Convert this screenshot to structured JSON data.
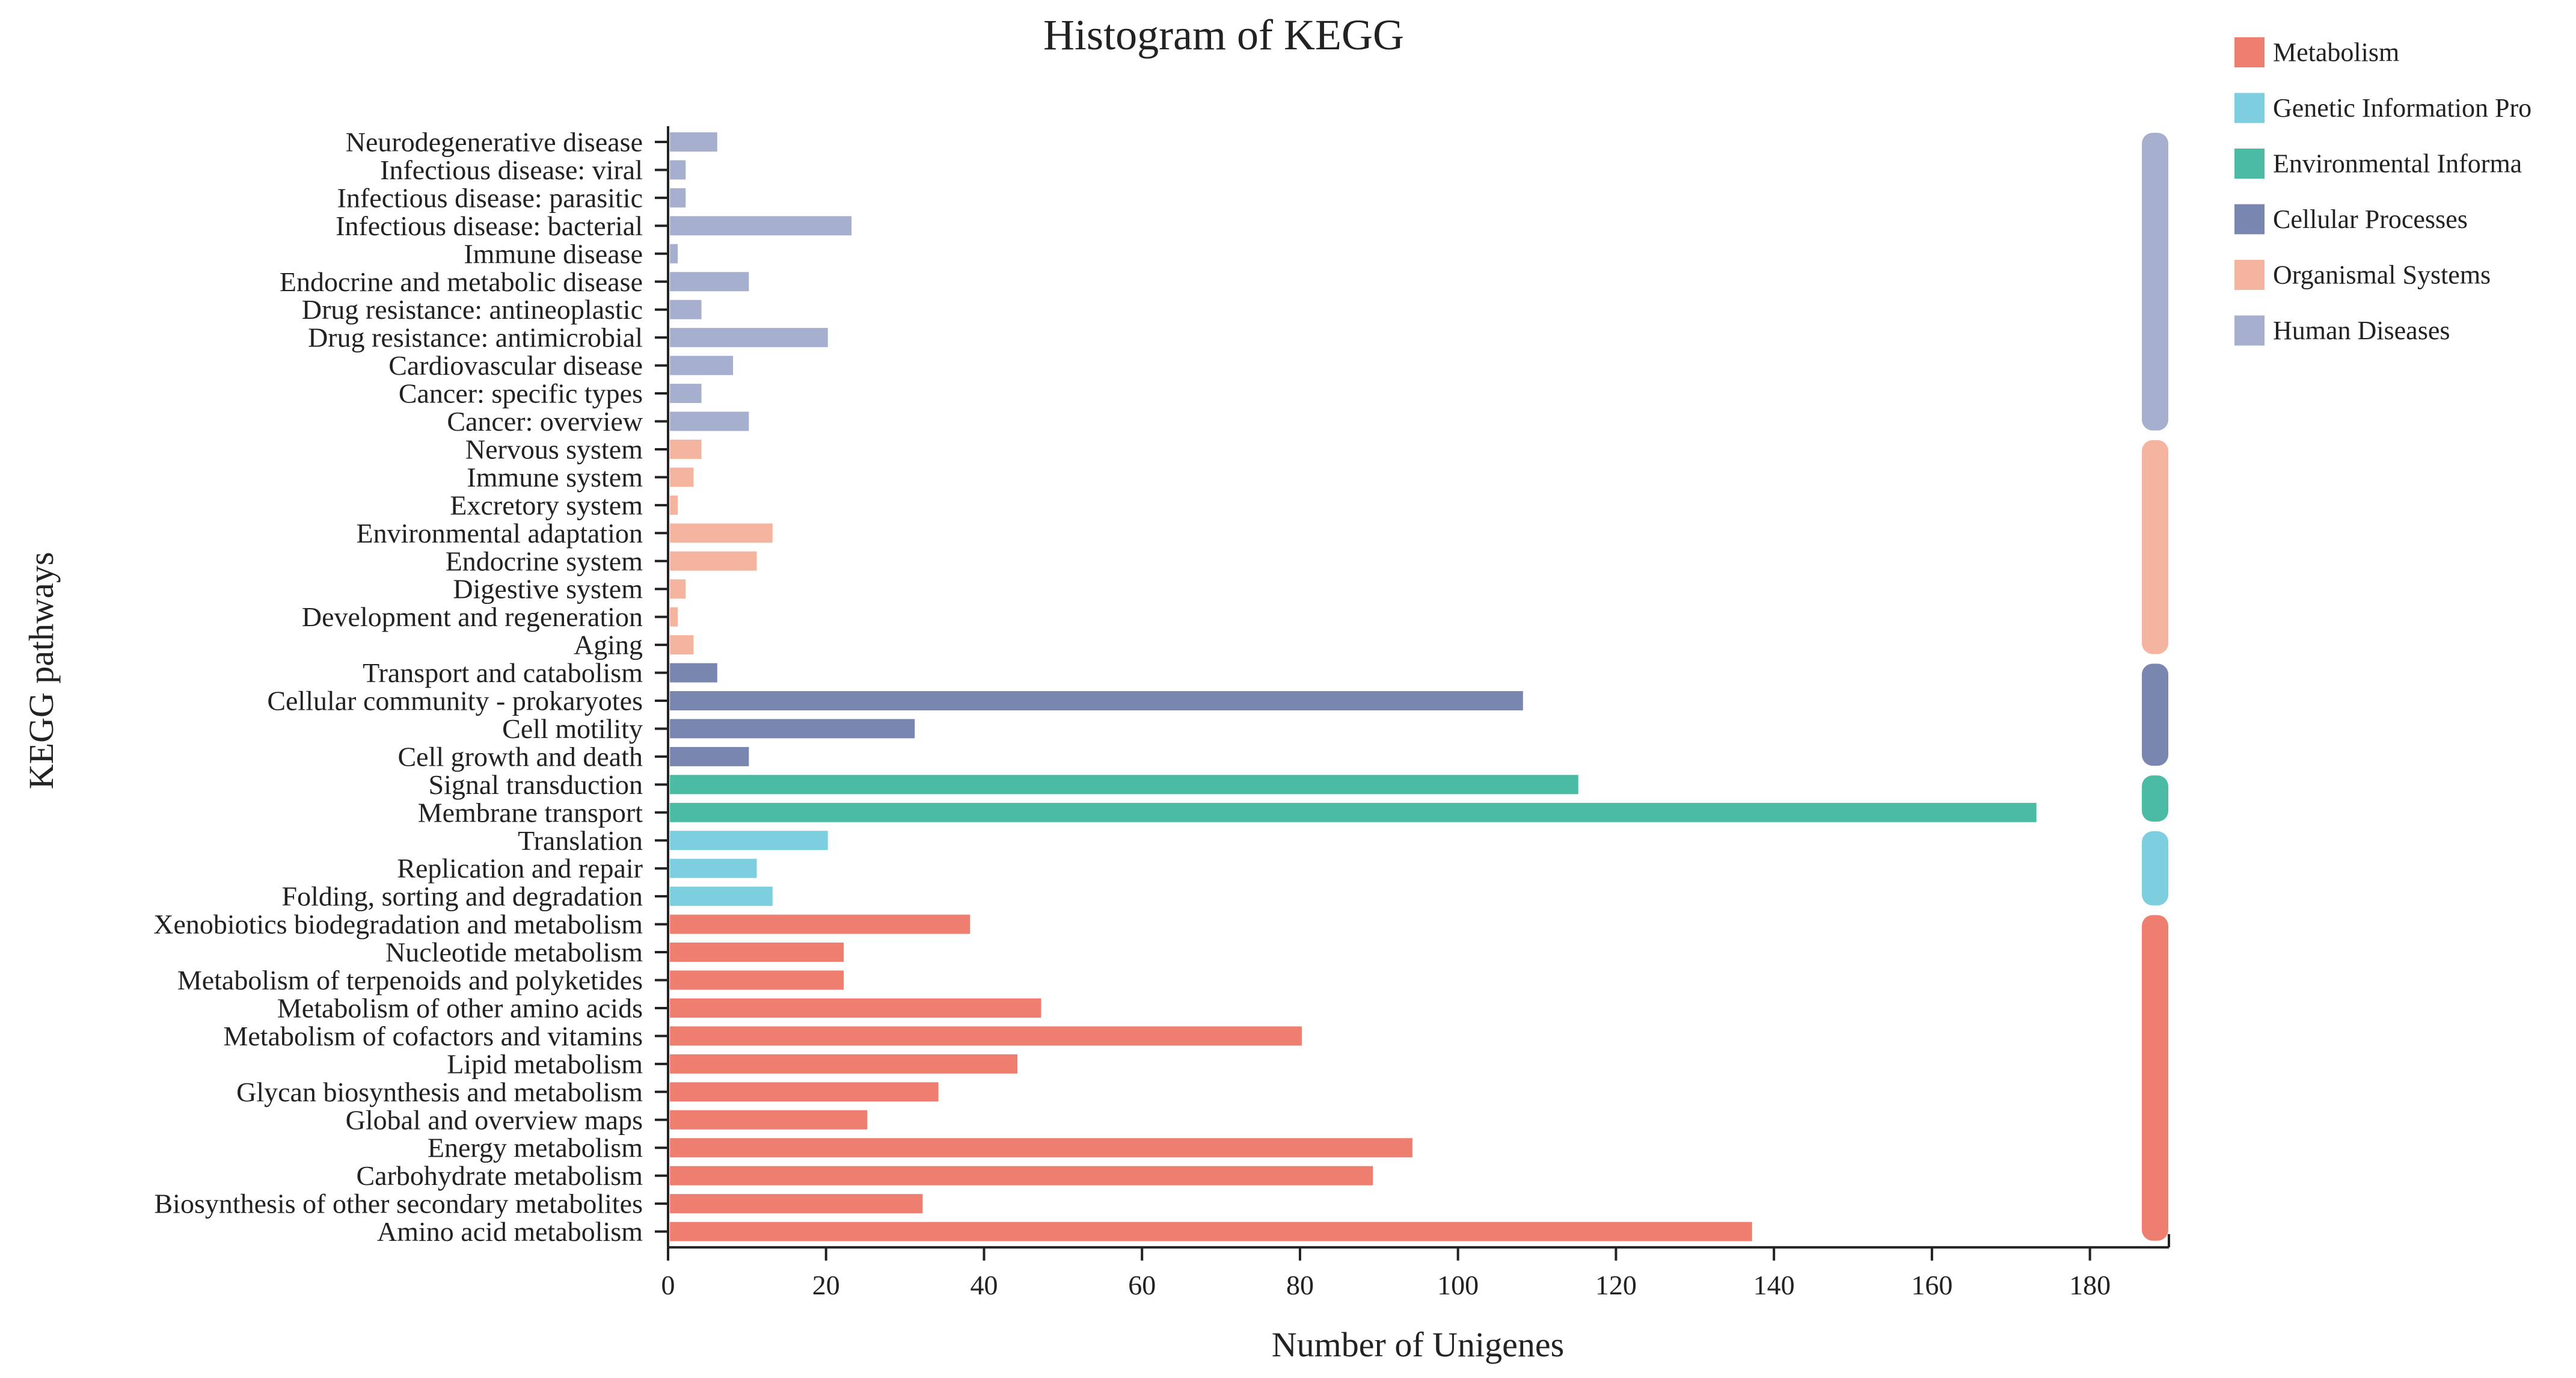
{
  "chart_data": {
    "type": "bar",
    "orientation": "horizontal",
    "title": "Histogram of KEGG",
    "xlabel": "Number of Unigenes",
    "ylabel": "KEGG pathways",
    "xlim": [
      0,
      190
    ],
    "xticks": [
      0,
      20,
      40,
      60,
      80,
      100,
      120,
      140,
      160,
      180
    ],
    "grid": false,
    "legend_position": "top-right",
    "groups": [
      {
        "key": "metabolism",
        "name": "Metabolism",
        "legend_label": "Metabolism",
        "color": "#EE7F70"
      },
      {
        "key": "genetic",
        "name": "Genetic Information Processing",
        "legend_label": "Genetic Information Pro",
        "color": "#7DCFE0"
      },
      {
        "key": "environmental",
        "name": "Environmental Information Processing",
        "legend_label": "Environmental Informa",
        "color": "#4BBBA4"
      },
      {
        "key": "cellular",
        "name": "Cellular Processes",
        "legend_label": "Cellular Processes",
        "color": "#7886B0"
      },
      {
        "key": "organismal",
        "name": "Organismal Systems",
        "legend_label": "Organismal Systems",
        "color": "#F5B4A0"
      },
      {
        "key": "human",
        "name": "Human Diseases",
        "legend_label": "Human Diseases",
        "color": "#A6AFCD"
      }
    ],
    "categories": [
      {
        "label": "Neurodegenerative disease",
        "value": 6,
        "group": "human"
      },
      {
        "label": "Infectious disease: viral",
        "value": 2,
        "group": "human"
      },
      {
        "label": "Infectious disease: parasitic",
        "value": 2,
        "group": "human"
      },
      {
        "label": "Infectious disease: bacterial",
        "value": 23,
        "group": "human"
      },
      {
        "label": "Immune disease",
        "value": 1,
        "group": "human"
      },
      {
        "label": "Endocrine and metabolic disease",
        "value": 10,
        "group": "human"
      },
      {
        "label": "Drug resistance: antineoplastic",
        "value": 4,
        "group": "human"
      },
      {
        "label": "Drug resistance: antimicrobial",
        "value": 20,
        "group": "human"
      },
      {
        "label": "Cardiovascular disease",
        "value": 8,
        "group": "human"
      },
      {
        "label": "Cancer: specific types",
        "value": 4,
        "group": "human"
      },
      {
        "label": "Cancer: overview",
        "value": 10,
        "group": "human"
      },
      {
        "label": "Nervous system",
        "value": 4,
        "group": "organismal"
      },
      {
        "label": "Immune system",
        "value": 3,
        "group": "organismal"
      },
      {
        "label": "Excretory system",
        "value": 1,
        "group": "organismal"
      },
      {
        "label": "Environmental adaptation",
        "value": 13,
        "group": "organismal"
      },
      {
        "label": "Endocrine system",
        "value": 11,
        "group": "organismal"
      },
      {
        "label": "Digestive system",
        "value": 2,
        "group": "organismal"
      },
      {
        "label": "Development and regeneration",
        "value": 1,
        "group": "organismal"
      },
      {
        "label": "Aging",
        "value": 3,
        "group": "organismal"
      },
      {
        "label": "Transport and catabolism",
        "value": 6,
        "group": "cellular"
      },
      {
        "label": "Cellular community - prokaryotes",
        "value": 108,
        "group": "cellular"
      },
      {
        "label": "Cell motility",
        "value": 31,
        "group": "cellular"
      },
      {
        "label": "Cell growth and death",
        "value": 10,
        "group": "cellular"
      },
      {
        "label": "Signal transduction",
        "value": 115,
        "group": "environmental"
      },
      {
        "label": "Membrane transport",
        "value": 173,
        "group": "environmental"
      },
      {
        "label": "Translation",
        "value": 20,
        "group": "genetic"
      },
      {
        "label": "Replication and repair",
        "value": 11,
        "group": "genetic"
      },
      {
        "label": "Folding, sorting and degradation",
        "value": 13,
        "group": "genetic"
      },
      {
        "label": "Xenobiotics biodegradation and metabolism",
        "value": 38,
        "group": "metabolism"
      },
      {
        "label": "Nucleotide metabolism",
        "value": 22,
        "group": "metabolism"
      },
      {
        "label": "Metabolism of terpenoids and polyketides",
        "value": 22,
        "group": "metabolism"
      },
      {
        "label": "Metabolism of other amino acids",
        "value": 47,
        "group": "metabolism"
      },
      {
        "label": "Metabolism of cofactors and vitamins",
        "value": 80,
        "group": "metabolism"
      },
      {
        "label": "Lipid metabolism",
        "value": 44,
        "group": "metabolism"
      },
      {
        "label": "Glycan biosynthesis and metabolism",
        "value": 34,
        "group": "metabolism"
      },
      {
        "label": "Global and overview maps",
        "value": 25,
        "group": "metabolism"
      },
      {
        "label": "Energy metabolism",
        "value": 94,
        "group": "metabolism"
      },
      {
        "label": "Carbohydrate metabolism",
        "value": 89,
        "group": "metabolism"
      },
      {
        "label": "Biosynthesis of other secondary metabolites",
        "value": 32,
        "group": "metabolism"
      },
      {
        "label": "Amino acid metabolism",
        "value": 137,
        "group": "metabolism"
      }
    ]
  }
}
